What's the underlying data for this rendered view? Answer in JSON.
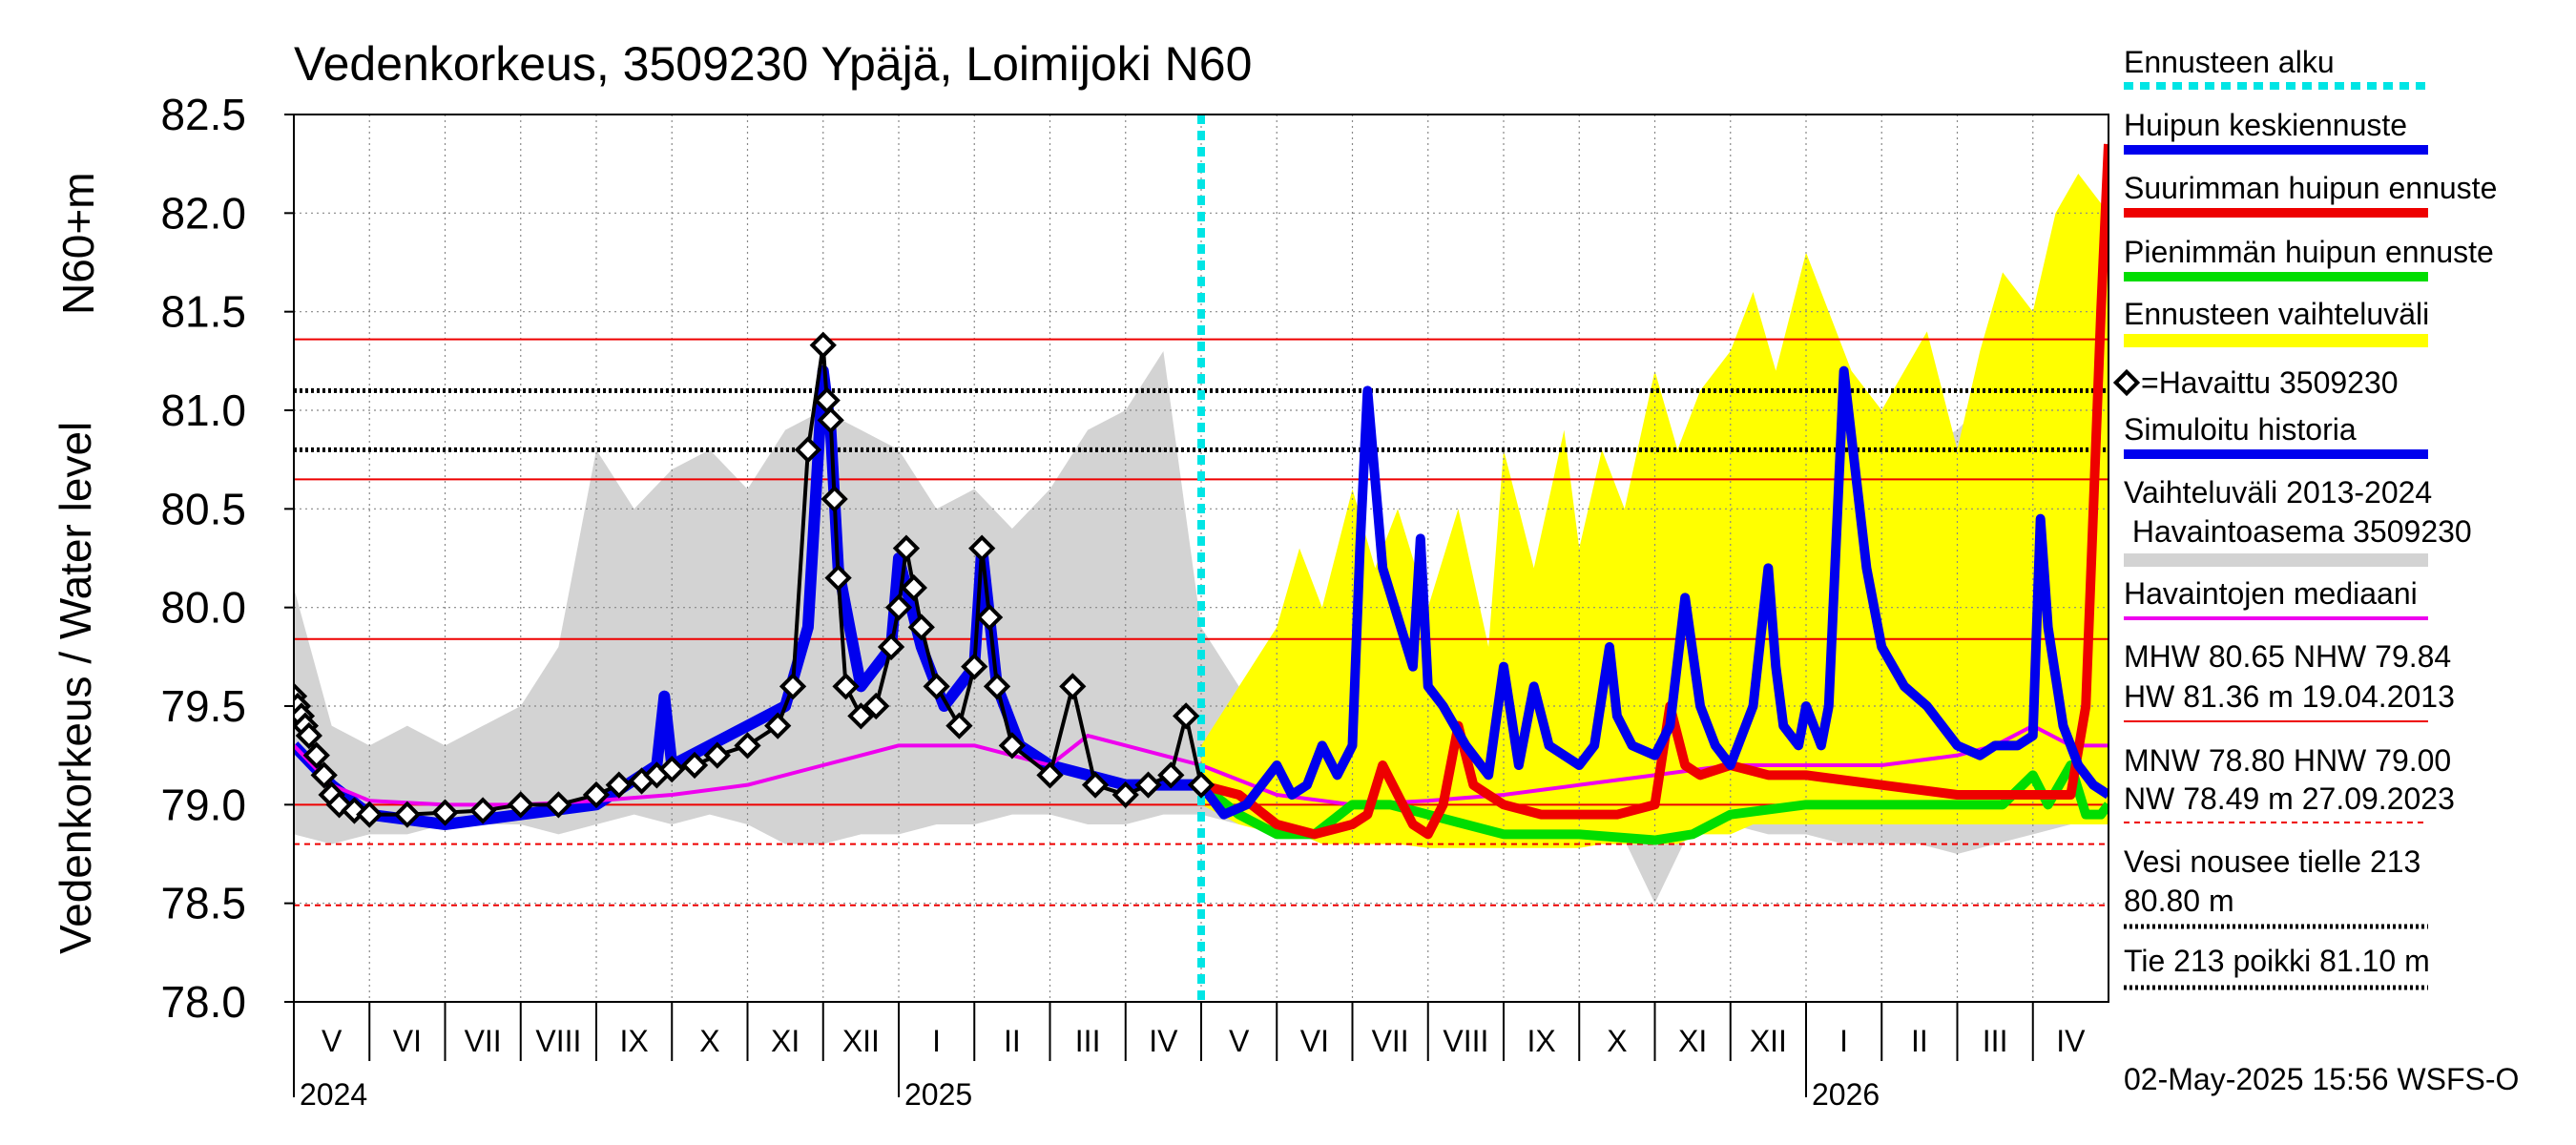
{
  "chart_data": {
    "type": "line",
    "title": "Vedenkorkeus, 3509230 Ypäjä, Loimijoki N60",
    "ylabel_outer": "Vedenkorkeus / Water level",
    "ylabel_inner": "N60+m",
    "ylim": [
      78.0,
      82.5
    ],
    "yticks": [
      "82.5",
      "82.0",
      "81.5",
      "81.0",
      "80.5",
      "80.0",
      "79.5",
      "79.0",
      "78.5",
      "78.0"
    ],
    "month_labels": [
      "V",
      "VI",
      "VII",
      "VIII",
      "IX",
      "X",
      "XI",
      "XII",
      "I",
      "II",
      "III",
      "IV",
      "V",
      "VI",
      "VII",
      "VIII",
      "IX",
      "X",
      "XI",
      "XII",
      "I",
      "II",
      "III",
      "IV"
    ],
    "year_labels": [
      "2024",
      "2025",
      "2026"
    ],
    "forecast_start_month_index": 12,
    "reference_lines": {
      "red_solid": [
        81.36,
        80.65,
        79.84,
        79.0
      ],
      "red_dashed": [
        78.8,
        78.49
      ],
      "black_dotted": [
        81.1,
        80.8
      ]
    },
    "colors": {
      "forecast_start": "#00e5e5",
      "mean_peak": "#0000ee",
      "max_peak": "#ee0000",
      "min_peak": "#00dd00",
      "forecast_range": "#ffff00",
      "observed": "#000000",
      "simulated": "#0000ee",
      "history_range": "#d3d3d3",
      "median": "#ee00ee"
    },
    "series": [
      {
        "name": "Havaittu 3509230",
        "x": [
          0,
          0.05,
          0.1,
          0.15,
          0.2,
          0.3,
          0.4,
          0.5,
          0.6,
          0.8,
          1.0,
          1.5,
          2.0,
          2.5,
          3.0,
          3.5,
          4.0,
          4.3,
          4.6,
          4.8,
          5.0,
          5.3,
          5.6,
          6.0,
          6.4,
          6.6,
          6.8,
          7.0,
          7.05,
          7.1,
          7.15,
          7.2,
          7.3,
          7.5,
          7.7,
          7.9,
          8.0,
          8.1,
          8.2,
          8.3,
          8.5,
          8.8,
          9.0,
          9.1,
          9.2,
          9.3,
          9.5,
          10.0,
          10.3,
          10.6,
          11.0,
          11.3,
          11.6,
          11.8,
          12.0
        ],
        "y": [
          79.55,
          79.5,
          79.45,
          79.4,
          79.35,
          79.25,
          79.15,
          79.05,
          79.0,
          78.97,
          78.95,
          78.95,
          78.96,
          78.97,
          79.0,
          79.0,
          79.05,
          79.1,
          79.12,
          79.15,
          79.18,
          79.2,
          79.25,
          79.3,
          79.4,
          79.6,
          80.8,
          81.33,
          81.05,
          80.95,
          80.55,
          80.15,
          79.6,
          79.45,
          79.5,
          79.8,
          80.0,
          80.3,
          80.1,
          79.9,
          79.6,
          79.4,
          79.7,
          80.3,
          79.95,
          79.6,
          79.3,
          79.15,
          79.6,
          79.1,
          79.05,
          79.1,
          79.15,
          79.45,
          79.1
        ]
      },
      {
        "name": "Simuloitu historia",
        "x": [
          0,
          0.5,
          1.0,
          2.0,
          3.0,
          4.0,
          4.8,
          4.9,
          5.0,
          5.5,
          6.0,
          6.5,
          6.8,
          7.0,
          7.1,
          7.2,
          7.5,
          7.9,
          8.0,
          8.1,
          8.3,
          8.6,
          9.0,
          9.1,
          9.3,
          9.6,
          10.0,
          11.0,
          12.0
        ],
        "y": [
          79.3,
          79.1,
          78.95,
          78.9,
          78.95,
          79.0,
          79.2,
          79.55,
          79.2,
          79.3,
          79.4,
          79.5,
          79.9,
          81.2,
          80.9,
          80.2,
          79.6,
          79.8,
          80.25,
          80.1,
          79.8,
          79.5,
          79.7,
          80.3,
          79.6,
          79.3,
          79.2,
          79.1,
          79.1
        ]
      },
      {
        "name": "Havaintojen mediaani",
        "x": [
          0,
          0.5,
          1.0,
          2.0,
          3.0,
          4.0,
          5.0,
          6.0,
          7.0,
          8.0,
          9.0,
          10.0,
          10.5,
          11.0,
          11.5,
          12.0,
          13.0,
          14.0,
          15.0,
          16.0,
          17.0,
          18.0,
          19.0,
          20.0,
          21.0,
          22.0,
          22.5,
          23.0,
          23.5,
          24.0
        ],
        "y": [
          79.3,
          79.1,
          79.02,
          79.0,
          79.0,
          79.02,
          79.05,
          79.1,
          79.2,
          79.3,
          79.3,
          79.2,
          79.35,
          79.3,
          79.25,
          79.2,
          79.05,
          79.0,
          79.02,
          79.05,
          79.1,
          79.15,
          79.2,
          79.2,
          79.2,
          79.25,
          79.3,
          79.4,
          79.3,
          79.3
        ]
      },
      {
        "name": "Huipun keskiennuste",
        "x": [
          12.0,
          12.3,
          12.6,
          13.0,
          13.2,
          13.4,
          13.6,
          13.8,
          14.0,
          14.1,
          14.2,
          14.4,
          14.6,
          14.8,
          14.9,
          15.0,
          15.2,
          15.5,
          15.8,
          16.0,
          16.2,
          16.4,
          16.6,
          17.0,
          17.2,
          17.4,
          17.5,
          17.7,
          18.0,
          18.2,
          18.4,
          18.6,
          18.8,
          19.0,
          19.3,
          19.5,
          19.6,
          19.7,
          19.9,
          20.0,
          20.2,
          20.3,
          20.5,
          20.8,
          21.0,
          21.3,
          21.6,
          22.0,
          22.3,
          22.5,
          22.8,
          23.0,
          23.1,
          23.2,
          23.4,
          23.6,
          23.8,
          24.0
        ],
        "y": [
          79.1,
          78.95,
          79.0,
          79.2,
          79.05,
          79.1,
          79.3,
          79.15,
          79.3,
          80.3,
          81.1,
          80.2,
          79.95,
          79.7,
          80.35,
          79.6,
          79.5,
          79.3,
          79.15,
          79.7,
          79.2,
          79.6,
          79.3,
          79.2,
          79.3,
          79.8,
          79.45,
          79.3,
          79.25,
          79.4,
          80.05,
          79.5,
          79.3,
          79.2,
          79.5,
          80.2,
          79.7,
          79.4,
          79.3,
          79.5,
          79.3,
          79.5,
          81.2,
          80.2,
          79.8,
          79.6,
          79.5,
          79.3,
          79.25,
          79.3,
          79.3,
          79.35,
          80.45,
          79.9,
          79.4,
          79.2,
          79.1,
          79.05
        ]
      },
      {
        "name": "Suurimman huipun ennuste",
        "x": [
          12.0,
          12.5,
          13.0,
          13.5,
          14.0,
          14.2,
          14.4,
          14.6,
          14.8,
          15.0,
          15.2,
          15.4,
          15.6,
          16.0,
          16.5,
          17.0,
          17.5,
          18.0,
          18.2,
          18.4,
          18.6,
          19.0,
          19.5,
          20.0,
          21.0,
          22.0,
          23.0,
          23.5,
          23.7,
          23.8,
          23.9,
          24.0
        ],
        "y": [
          79.1,
          79.05,
          78.9,
          78.85,
          78.9,
          78.95,
          79.2,
          79.05,
          78.9,
          78.85,
          79.0,
          79.4,
          79.1,
          79.0,
          78.95,
          78.95,
          78.95,
          79.0,
          79.5,
          79.2,
          79.15,
          79.2,
          79.15,
          79.15,
          79.1,
          79.05,
          79.05,
          79.05,
          79.5,
          80.5,
          81.5,
          82.35
        ]
      },
      {
        "name": "Pienimmän huipun ennuste",
        "x": [
          12.0,
          12.5,
          13.0,
          13.5,
          14.0,
          14.5,
          15.0,
          16.0,
          17.0,
          18.0,
          18.5,
          19.0,
          20.0,
          21.0,
          22.0,
          22.6,
          23.0,
          23.2,
          23.5,
          23.7,
          23.9,
          24.0
        ],
        "y": [
          79.1,
          78.95,
          78.85,
          78.85,
          79.0,
          79.0,
          78.95,
          78.85,
          78.85,
          78.82,
          78.85,
          78.95,
          79.0,
          79.0,
          79.0,
          79.0,
          79.15,
          79.0,
          79.2,
          78.95,
          78.95,
          79.0
        ]
      },
      {
        "name": "Ennusteen vaihteluväli",
        "x": [
          12.0,
          12.5,
          13.0,
          13.3,
          13.6,
          14.0,
          14.3,
          14.6,
          15.0,
          15.4,
          15.8,
          16.0,
          16.4,
          16.8,
          17.0,
          17.3,
          17.6,
          18.0,
          18.3,
          18.6,
          19.0,
          19.3,
          19.6,
          20.0,
          20.3,
          20.6,
          21.0,
          21.3,
          21.6,
          22.0,
          22.3,
          22.6,
          23.0,
          23.3,
          23.6,
          24.0
        ],
        "upper": [
          79.3,
          79.6,
          79.9,
          80.3,
          80.0,
          80.6,
          80.2,
          80.5,
          80.0,
          80.5,
          79.8,
          80.8,
          80.2,
          80.9,
          80.3,
          80.8,
          80.5,
          81.2,
          80.8,
          81.1,
          81.3,
          81.6,
          81.2,
          81.8,
          81.5,
          81.2,
          81.0,
          81.2,
          81.4,
          80.8,
          81.3,
          81.7,
          81.5,
          82.0,
          82.2,
          82.0
        ],
        "lower": [
          79.0,
          78.9,
          78.85,
          78.85,
          78.8,
          78.8,
          78.8,
          78.8,
          78.78,
          78.78,
          78.78,
          78.78,
          78.78,
          78.78,
          78.78,
          78.8,
          78.8,
          78.8,
          78.8,
          78.85,
          78.85,
          78.9,
          78.9,
          78.9,
          78.9,
          78.9,
          78.9,
          78.9,
          78.9,
          78.9,
          78.9,
          78.9,
          78.9,
          78.9,
          78.9,
          78.9
        ]
      },
      {
        "name": "Vaihteluväli 2013-2024 Havaintoasema 3509230",
        "x": [
          0,
          0.5,
          1.0,
          1.5,
          2.0,
          2.5,
          3.0,
          3.5,
          4.0,
          4.5,
          5.0,
          5.5,
          6.0,
          6.5,
          7.0,
          7.5,
          8.0,
          8.5,
          9.0,
          9.5,
          10.0,
          10.5,
          11.0,
          11.5,
          12.0,
          12.5,
          13.0,
          13.5,
          14.0,
          14.5,
          15.0,
          15.5,
          16.0,
          16.5,
          17.0,
          17.5,
          18.0,
          18.5,
          19.0,
          19.5,
          20.0,
          20.5,
          21.0,
          21.5,
          22.0,
          22.5,
          23.0,
          23.5,
          24.0
        ],
        "upper": [
          80.1,
          79.4,
          79.3,
          79.4,
          79.3,
          79.4,
          79.5,
          79.8,
          80.8,
          80.5,
          80.7,
          80.8,
          80.6,
          80.9,
          81.0,
          80.9,
          80.8,
          80.5,
          80.6,
          80.4,
          80.6,
          80.9,
          81.0,
          81.3,
          79.9,
          79.6,
          79.5,
          79.4,
          79.5,
          79.4,
          79.5,
          79.6,
          79.8,
          79.9,
          80.0,
          80.1,
          80.3,
          80.4,
          80.6,
          80.8,
          80.5,
          80.6,
          80.7,
          80.8,
          80.9,
          81.1,
          81.3,
          80.7,
          80.0
        ],
        "lower": [
          78.85,
          78.8,
          78.85,
          78.85,
          78.9,
          78.9,
          78.9,
          78.85,
          78.9,
          78.95,
          78.9,
          78.95,
          78.9,
          78.8,
          78.8,
          78.85,
          78.85,
          78.9,
          78.9,
          78.95,
          78.95,
          78.9,
          78.9,
          78.95,
          78.95,
          78.9,
          78.9,
          78.9,
          78.9,
          78.9,
          78.85,
          78.85,
          78.85,
          78.9,
          78.9,
          78.9,
          78.5,
          78.9,
          78.9,
          78.85,
          78.85,
          78.8,
          78.8,
          78.8,
          78.75,
          78.8,
          78.85,
          78.9,
          78.95
        ]
      }
    ]
  },
  "legend": {
    "forecast_start": "Ennusteen alku",
    "mean_peak": "Huipun keskiennuste",
    "max_peak": "Suurimman huipun ennuste",
    "min_peak": "Pienimmän huipun ennuste",
    "forecast_range": "Ennusteen vaihteluväli",
    "observed": "=Havaittu 3509230",
    "simulated": "Simuloitu historia",
    "history_range_1": "Vaihteluväli 2013-2024",
    "history_range_2": " Havaintoasema 3509230",
    "median": "Havaintojen mediaani",
    "mhw_line": "MHW  80.65 NHW  79.84",
    "hw_line": "HW  81.36 m 19.04.2013",
    "mnw_line": "MNW  78.80 HNW  79.00",
    "nw_line": "NW  78.49 m 27.09.2023",
    "road_1a": "Vesi nousee tielle 213",
    "road_1b": "80.80 m",
    "road_2": "Tie 213 poikki 81.10 m"
  },
  "footer": "02-May-2025 15:56 WSFS-O"
}
